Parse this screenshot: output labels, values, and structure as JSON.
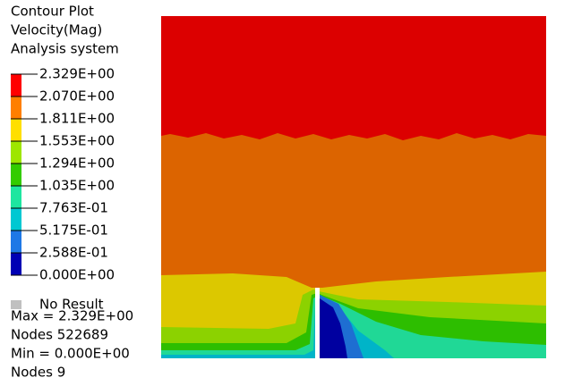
{
  "legend": {
    "title": [
      "Contour Plot",
      "Velocity(Mag)",
      "Analysis system"
    ],
    "levels": [
      "2.329E+00",
      "2.070E+00",
      "1.811E+00",
      "1.553E+00",
      "1.294E+00",
      "1.035E+00",
      "7.763E-01",
      "5.175E-01",
      "2.588E-01",
      "0.000E+00"
    ],
    "colors": [
      "#ff0000",
      "#ff7f00",
      "#ffdf00",
      "#9ee600",
      "#33cc00",
      "#1ee6a0",
      "#00c8d2",
      "#1e78e6",
      "#0000b4"
    ],
    "no_result": "No Result",
    "no_result_color": "#c0c0c0"
  },
  "stats": [
    "Max =  2.329E+00",
    "Nodes 522689",
    "Min =  0.000E+00",
    "Nodes 9"
  ]
}
